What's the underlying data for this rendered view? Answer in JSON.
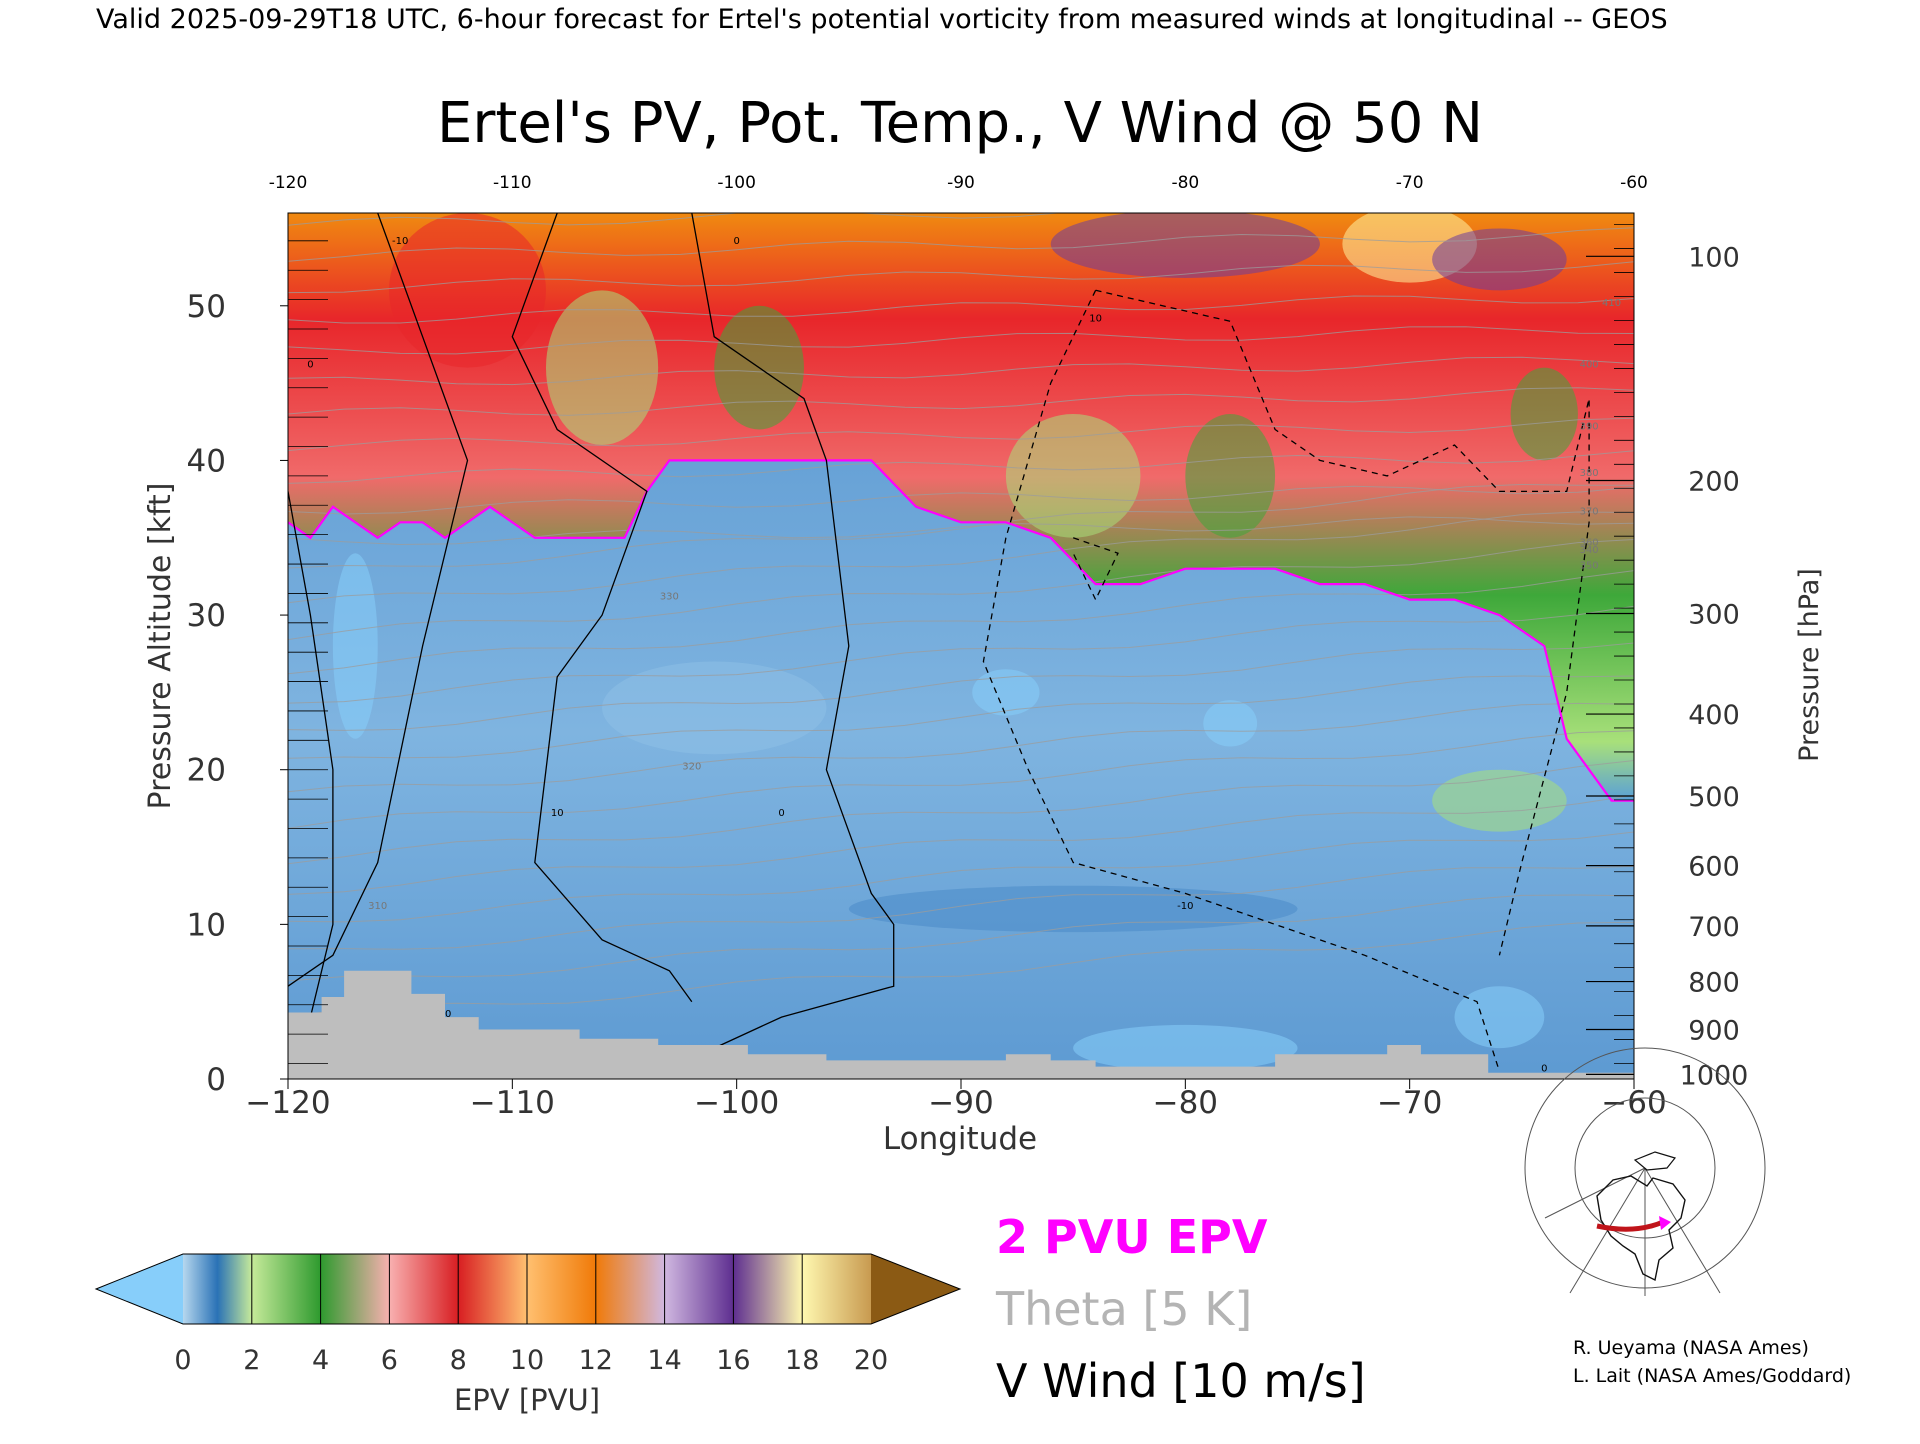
{
  "header": {
    "valid_line": "Valid 2025-09-29T18 UTC, 6-hour forecast for Ertel's potential vorticity from measured winds at longitudinal -- GEOS"
  },
  "chart_data": {
    "type": "heatmap",
    "title": "Ertel's PV, Pot. Temp., V Wind @ 50 N",
    "xlabel": "Longitude",
    "ylabel": "Pressure Altitude [kft]",
    "y2label": "Pressure [hPa]",
    "xlim": [
      -120,
      -60
    ],
    "ylim": [
      0,
      56
    ],
    "x_ticks": [
      "−120",
      "−110",
      "−100",
      "−90",
      "−80",
      "−70",
      "−60"
    ],
    "x_ticks_top": [
      "-120",
      "-110",
      "-100",
      "-90",
      "-80",
      "-70",
      "-60"
    ],
    "y_ticks": [
      0,
      10,
      20,
      30,
      40,
      50
    ],
    "pressure_ticks": [
      {
        "label": "100",
        "kft": 53.2
      },
      {
        "label": "200",
        "kft": 38.7
      },
      {
        "label": "300",
        "kft": 30.1
      },
      {
        "label": "400",
        "kft": 23.6
      },
      {
        "label": "500",
        "kft": 18.3
      },
      {
        "label": "600",
        "kft": 13.8
      },
      {
        "label": "700",
        "kft": 9.9
      },
      {
        "label": "800",
        "kft": 6.3
      },
      {
        "label": "900",
        "kft": 3.2
      },
      {
        "label": "1000",
        "kft": 0.3
      }
    ],
    "tropopause_2pvu_kft": {
      "lon": [
        -120,
        -119,
        -118,
        -117,
        -116,
        -115,
        -114,
        -113,
        -112,
        -111,
        -110,
        -109,
        -108,
        -107,
        -106,
        -105,
        -104,
        -103,
        -102,
        -101,
        -100,
        -98,
        -96,
        -94,
        -92,
        -90,
        -88,
        -86,
        -84,
        -82,
        -80,
        -78,
        -76,
        -74,
        -72,
        -70,
        -68,
        -66,
        -64,
        -63,
        -62,
        -61,
        -60
      ],
      "kft": [
        36,
        35,
        37,
        36,
        35,
        36,
        36,
        35,
        36,
        37,
        36,
        35,
        35,
        35,
        35,
        35,
        38,
        40,
        40,
        40,
        40,
        40,
        40,
        40,
        37,
        36,
        36,
        35,
        32,
        32,
        33,
        33,
        33,
        32,
        32,
        31,
        31,
        30,
        28,
        22,
        20,
        18,
        18
      ]
    },
    "pv_scale_pvu": [
      0,
      2,
      4,
      6,
      8,
      10,
      12,
      14,
      16,
      18,
      20
    ],
    "colorbar_colors": [
      "#5aa0d8",
      "#a8e07a",
      "#3ea83a",
      "#f6a0a0",
      "#e8262a",
      "#ffb060",
      "#ff8a10",
      "#c6a4d8",
      "#6e3c9c",
      "#fff2a0"
    ],
    "colorbar_under": "#87cefa",
    "colorbar_over": "#8b5a14",
    "colorbar_label": "EPV [PVU]",
    "theta_contour_interval_K": 5,
    "vwind_contour_interval_ms": 10,
    "contour_labels": [
      "-10",
      "0",
      "10",
      "0",
      "10",
      "-10",
      "10",
      "0",
      "0",
      "340",
      "350",
      "360",
      "370",
      "380",
      "390",
      "400",
      "410",
      "320",
      "330",
      "310"
    ],
    "grid": false
  },
  "legend": {
    "pvu_line": "2 PVU EPV",
    "theta_line": "Theta [5 K]",
    "wind_line": "V Wind [10 m/s]",
    "pvu_color": "#ff00ff",
    "theta_color": "#b4b4b4"
  },
  "credits": {
    "line1": "R. Ueyama (NASA Ames)",
    "line2": "L. Lait (NASA Ames/Goddard)"
  },
  "colors": {
    "topography": "#bebebe",
    "troposphere": "#6aa6d6",
    "stratosphere_low": "#3ea83a",
    "stratosphere_high": "#e8262a"
  }
}
